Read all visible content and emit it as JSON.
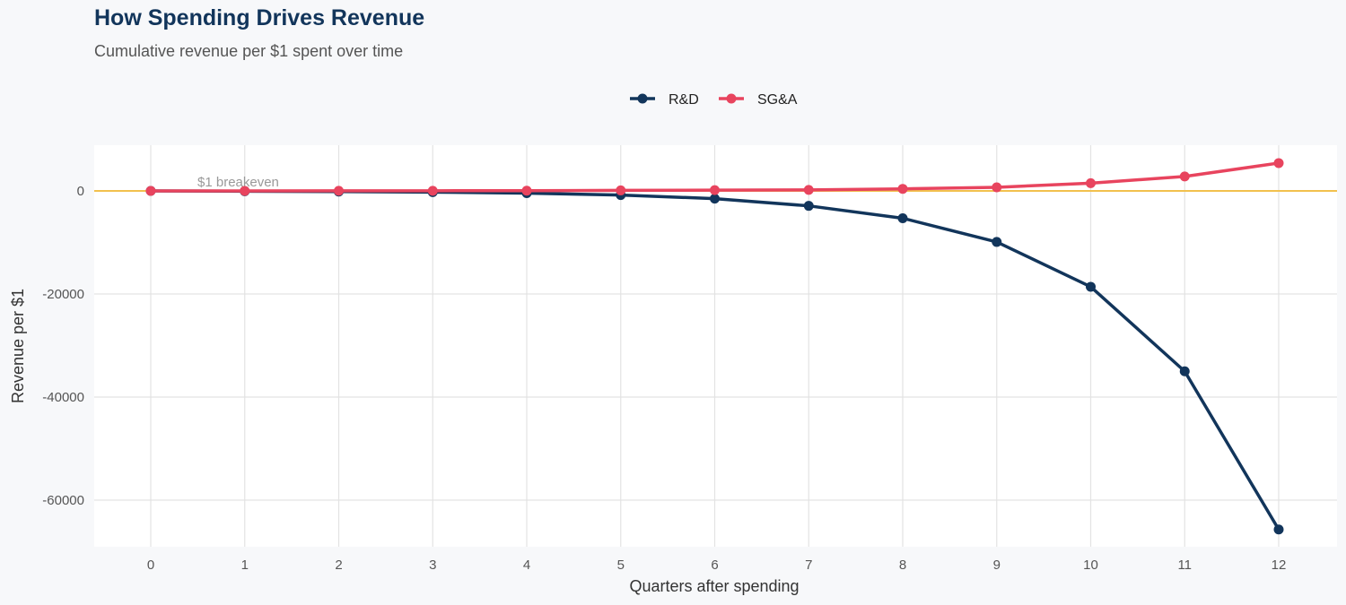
{
  "chart_data": {
    "type": "line",
    "title": "How Spending Drives Revenue",
    "subtitle": "Cumulative revenue per $1 spent over time",
    "xlabel": "Quarters after spending",
    "ylabel": "Revenue per $1",
    "x": [
      0,
      1,
      2,
      3,
      4,
      5,
      6,
      7,
      8,
      9,
      10,
      11,
      12
    ],
    "xlim": [
      -0.6,
      12.6
    ],
    "ylim": [
      -69000,
      9000
    ],
    "yticks": [
      0,
      -20000,
      -40000,
      -60000
    ],
    "ytick_labels": [
      "0",
      "-20000",
      "-40000",
      "-60000"
    ],
    "xtick_labels": [
      "0",
      "1",
      "2",
      "3",
      "4",
      "5",
      "6",
      "7",
      "8",
      "9",
      "10",
      "11",
      "12"
    ],
    "grid": true,
    "legend_position": "top",
    "series": [
      {
        "name": "R&D",
        "color": "#12355b",
        "values": [
          0,
          -60,
          -120,
          -230,
          -430,
          -800,
          -1500,
          -2900,
          -5300,
          -9900,
          -18600,
          -35000,
          -65700
        ]
      },
      {
        "name": "SG&A",
        "color": "#e8445e",
        "values": [
          0,
          10,
          20,
          30,
          50,
          100,
          150,
          200,
          400,
          700,
          1500,
          2800,
          5400
        ]
      }
    ],
    "reference_line": {
      "y": 0,
      "label": "$1 breakeven",
      "color": "#f2c14e"
    }
  }
}
